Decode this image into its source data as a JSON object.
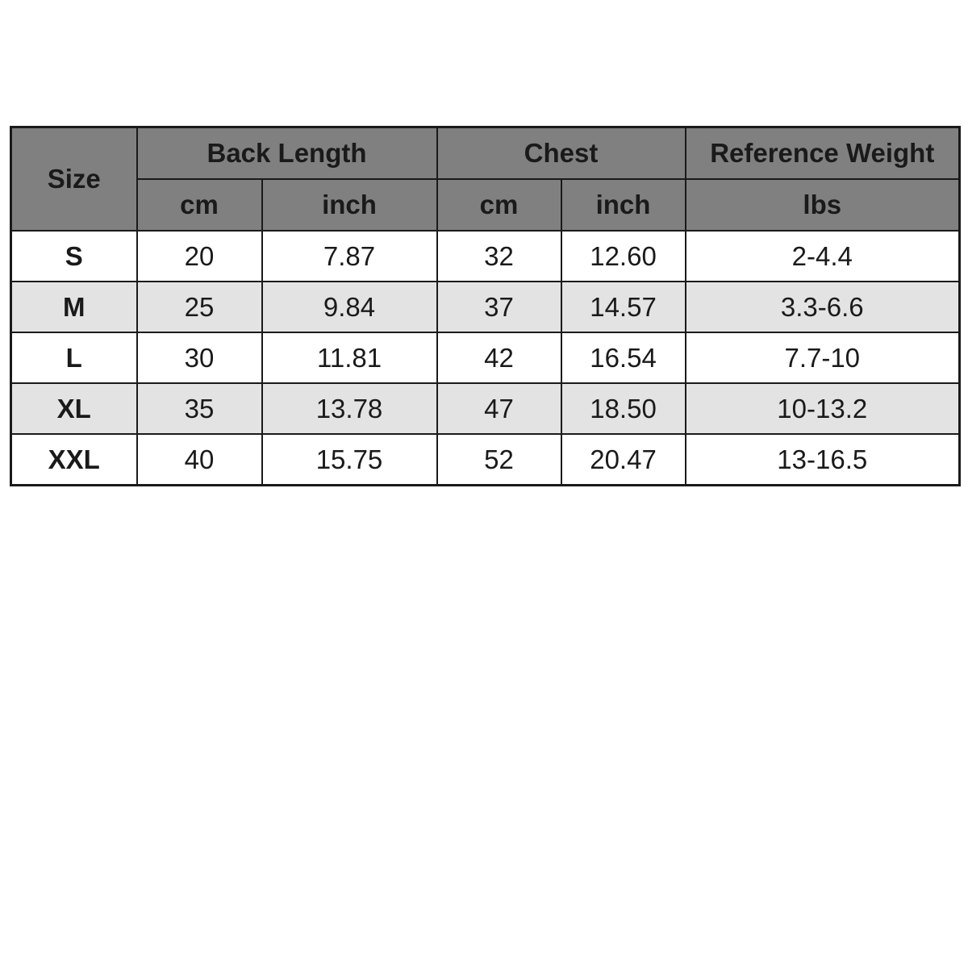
{
  "table": {
    "size_header": "Size",
    "groups": [
      {
        "label": "Back Length",
        "units": [
          "cm",
          "inch"
        ]
      },
      {
        "label": "Chest",
        "units": [
          "cm",
          "inch"
        ]
      },
      {
        "label": "Reference Weight",
        "units": [
          "lbs"
        ]
      }
    ],
    "rows": [
      [
        "S",
        "20",
        "7.87",
        "32",
        "12.60",
        "2-4.4"
      ],
      [
        "M",
        "25",
        "9.84",
        "37",
        "14.57",
        "3.3-6.6"
      ],
      [
        "L",
        "30",
        "11.81",
        "42",
        "16.54",
        "7.7-10"
      ],
      [
        "XL",
        "35",
        "13.78",
        "47",
        "18.50",
        "10-13.2"
      ],
      [
        "XXL",
        "40",
        "15.75",
        "52",
        "20.47",
        "13-16.5"
      ]
    ]
  }
}
